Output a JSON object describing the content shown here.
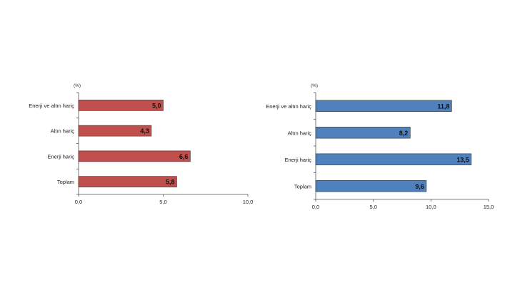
{
  "chart_data": [
    {
      "type": "bar",
      "orientation": "horizontal",
      "unit_label": "(%)",
      "categories": [
        "Enerji ve altın hariç",
        "Altın hariç",
        "Enerji hariç",
        "Toplam"
      ],
      "values": [
        5.0,
        4.3,
        6.6,
        5.8
      ],
      "value_labels": [
        "5,0",
        "4,3",
        "6,6",
        "5,8"
      ],
      "xlim": [
        0,
        10
      ],
      "ticks": [
        0,
        5,
        10
      ],
      "tick_labels": [
        "0,0",
        "5,0",
        "10,0"
      ],
      "grid": false,
      "color": "#c0504d"
    },
    {
      "type": "bar",
      "orientation": "horizontal",
      "unit_label": "(%)",
      "categories": [
        "Enerji ve altın hariç",
        "Altın hariç",
        "Enerji hariç",
        "Toplam"
      ],
      "values": [
        11.8,
        8.2,
        13.5,
        9.6
      ],
      "value_labels": [
        "11,8",
        "8,2",
        "13,5",
        "9,6"
      ],
      "xlim": [
        0,
        15
      ],
      "ticks": [
        0,
        5,
        10,
        15
      ],
      "tick_labels": [
        "0,0",
        "5,0",
        "10,0",
        "15,0"
      ],
      "grid": false,
      "color": "#4f81bd"
    }
  ]
}
